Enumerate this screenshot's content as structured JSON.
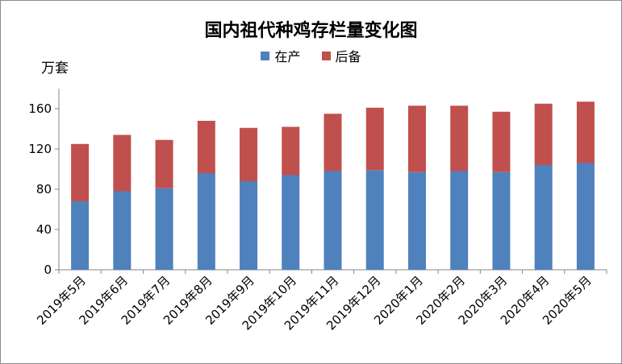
{
  "chart_data": {
    "type": "bar",
    "stacked": true,
    "title": "国内祖代种鸡存栏量变化图",
    "ylabel": "万套",
    "xlabel": "",
    "ylim": [
      0,
      180
    ],
    "yticks": [
      0,
      40,
      80,
      120,
      160
    ],
    "grid": false,
    "legend_position": "top",
    "categories": [
      "2019年5月",
      "2019年6月",
      "2019年7月",
      "2019年8月",
      "2019年9月",
      "2019年10月",
      "2019年11月",
      "2019年12月",
      "2020年1月",
      "2020年2月",
      "2020年3月",
      "2020年4月",
      "2020年5月"
    ],
    "series": [
      {
        "name": "在产",
        "color": "#4f81bd",
        "values": [
          68,
          78,
          81,
          96,
          88,
          94,
          98,
          99,
          97,
          98,
          97,
          104,
          106
        ]
      },
      {
        "name": "后备",
        "color": "#c0504d",
        "values": [
          57,
          56,
          48,
          52,
          53,
          48,
          57,
          62,
          66,
          65,
          60,
          61,
          61
        ]
      }
    ]
  }
}
